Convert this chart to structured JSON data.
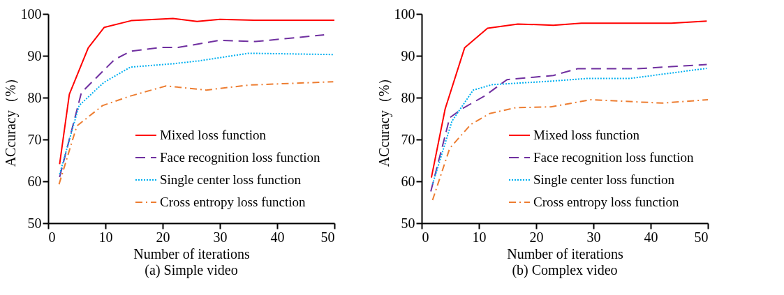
{
  "chart_data": [
    {
      "type": "line",
      "title": "(a) Simple video",
      "xlabel": "Number of iterations",
      "ylabel": "ACcuracy（%）",
      "xlim": [
        0,
        50
      ],
      "ylim": [
        50,
        100
      ],
      "xticks": [
        0,
        10,
        20,
        30,
        40,
        50
      ],
      "yticks": [
        50,
        60,
        70,
        80,
        90,
        100
      ],
      "grid": false,
      "legend": "bottom right",
      "marker": "none",
      "series": [
        {
          "name": "Mixed loss function",
          "color": "#ff0000",
          "line_style": "solid",
          "x": [
            2,
            3.7,
            7,
            9.8,
            14.5,
            21.8,
            26,
            30,
            36,
            50
          ],
          "values": [
            64.1,
            80.8,
            91.9,
            96.8,
            98.4,
            98.9,
            98.2,
            98.7,
            98.5,
            98.5
          ]
        },
        {
          "name": "Face recognition loss function",
          "color": "#7030a0",
          "line_style": "dashed",
          "x": [
            2,
            5.8,
            11.6,
            14.4,
            19.8,
            22.7,
            30,
            36.2,
            48.2
          ],
          "values": [
            61,
            81.2,
            89.1,
            91.1,
            92,
            92,
            93.7,
            93.4,
            95
          ]
        },
        {
          "name": "Single center loss function",
          "color": "#00b0f0",
          "line_style": "dotted",
          "x": [
            2,
            5.4,
            9.7,
            14.4,
            21.8,
            26.4,
            35,
            49.8
          ],
          "values": [
            61.7,
            78.1,
            83.6,
            87.3,
            88.1,
            88.8,
            90.6,
            90.3
          ]
        },
        {
          "name": "Cross entropy loss function",
          "color": "#ed7d31",
          "line_style": "dashdot",
          "x": [
            1.9,
            5,
            9.5,
            14.4,
            20.6,
            27.6,
            35,
            49.8
          ],
          "values": [
            59.3,
            73.2,
            78.1,
            80.4,
            82.8,
            81.8,
            83,
            83.8
          ]
        }
      ]
    },
    {
      "type": "line",
      "title": "(b) Complex video",
      "xlabel": "Number of iterations",
      "ylabel": "ACcuracy（%）",
      "xlim": [
        0,
        50
      ],
      "ylim": [
        50,
        100
      ],
      "xticks": [
        0,
        10,
        20,
        30,
        40,
        50
      ],
      "yticks": [
        50,
        60,
        70,
        80,
        90,
        100
      ],
      "grid": false,
      "legend": "bottom right",
      "marker": "none",
      "series": [
        {
          "name": "Mixed loss function",
          "color": "#ff0000",
          "line_style": "solid",
          "x": [
            1.7,
            4.1,
            7.5,
            11.5,
            16.8,
            23,
            27.9,
            43.6,
            49.8
          ],
          "values": [
            60.9,
            77.3,
            91.9,
            96.6,
            97.6,
            97.3,
            97.8,
            97.8,
            98.3
          ]
        },
        {
          "name": "Face recognition loss function",
          "color": "#7030a0",
          "line_style": "dashed",
          "x": [
            1.6,
            4.9,
            6.9,
            11.1,
            14.9,
            23,
            27.2,
            37.4,
            43.6,
            49.8
          ],
          "values": [
            57.6,
            75.2,
            77.2,
            80.5,
            84.3,
            85.3,
            86.9,
            86.9,
            87.4,
            87.9
          ]
        },
        {
          "name": "Single center loss function",
          "color": "#00b0f0",
          "line_style": "dotted",
          "x": [
            1.9,
            5.3,
            9,
            12.3,
            22.2,
            29.1,
            36.5,
            49.8
          ],
          "values": [
            59.3,
            74.4,
            81.8,
            83.1,
            83.9,
            84.6,
            84.6,
            87
          ]
        },
        {
          "name": "Cross entropy loss function",
          "color": "#ed7d31",
          "line_style": "dashdot",
          "x": [
            1.9,
            4.9,
            8.6,
            11.9,
            16.4,
            22.6,
            29.6,
            42,
            50
          ],
          "values": [
            55.5,
            67.9,
            73.6,
            76.2,
            77.6,
            77.8,
            79.5,
            78.7,
            79.5
          ]
        }
      ]
    }
  ]
}
